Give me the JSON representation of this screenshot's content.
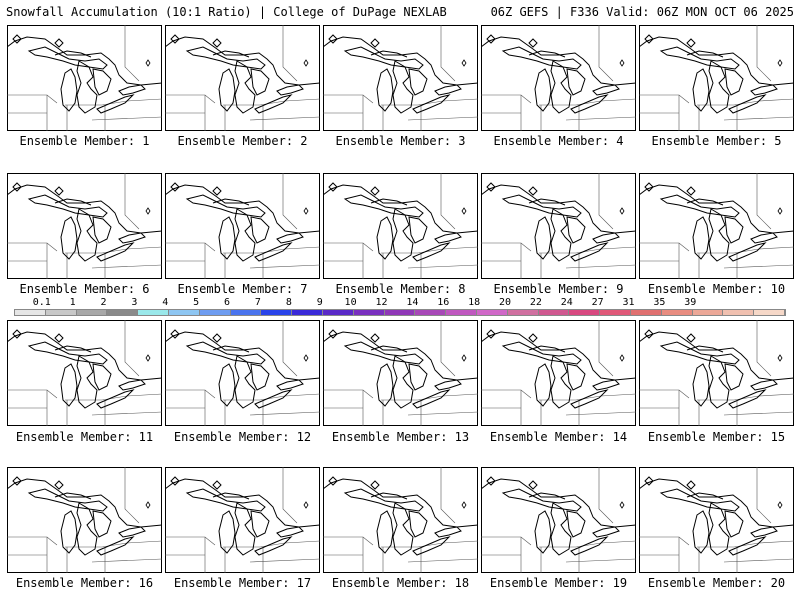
{
  "header": {
    "left": "Snowfall Accumulation (10:1 Ratio) | College of DuPage NEXLAB",
    "right": "06Z GEFS | F336 Valid: 06Z MON OCT 06 2025"
  },
  "panels": [
    {
      "label": "Ensemble Member: 1"
    },
    {
      "label": "Ensemble Member: 2"
    },
    {
      "label": "Ensemble Member: 3"
    },
    {
      "label": "Ensemble Member: 4"
    },
    {
      "label": "Ensemble Member: 5"
    },
    {
      "label": "Ensemble Member: 6"
    },
    {
      "label": "Ensemble Member: 7"
    },
    {
      "label": "Ensemble Member: 8"
    },
    {
      "label": "Ensemble Member: 9"
    },
    {
      "label": "Ensemble Member: 10"
    },
    {
      "label": "Ensemble Member: 11"
    },
    {
      "label": "Ensemble Member: 12"
    },
    {
      "label": "Ensemble Member: 13"
    },
    {
      "label": "Ensemble Member: 14"
    },
    {
      "label": "Ensemble Member: 15"
    },
    {
      "label": "Ensemble Member: 16"
    },
    {
      "label": "Ensemble Member: 17"
    },
    {
      "label": "Ensemble Member: 18"
    },
    {
      "label": "Ensemble Member: 19"
    },
    {
      "label": "Ensemble Member: 20"
    }
  ],
  "colorbar": {
    "labels": [
      "0.1",
      "1",
      "2",
      "3",
      "4",
      "5",
      "6",
      "7",
      "8",
      "9",
      "10",
      "12",
      "14",
      "16",
      "18",
      "20",
      "22",
      "24",
      "27",
      "31",
      "35",
      "39"
    ],
    "colors": [
      "#e6e6e6",
      "#c8c8c8",
      "#a8a8a8",
      "#8a8a8a",
      "#9ae8ea",
      "#8ec6f2",
      "#6e9cf0",
      "#4a74ee",
      "#2a44ea",
      "#3a2ad8",
      "#5a2ac8",
      "#7a30c0",
      "#9038b8",
      "#a848b8",
      "#c058c0",
      "#d068c8",
      "#d070a0",
      "#d05890",
      "#d84880",
      "#e05878",
      "#e07070",
      "#e88c80",
      "#eca898",
      "#f0c0b0",
      "#f6d8c8"
    ]
  }
}
